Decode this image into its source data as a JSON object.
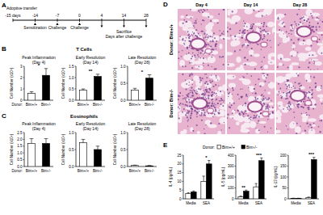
{
  "figure": {
    "panels": [
      "A",
      "B",
      "C",
      "D",
      "E"
    ],
    "row_titles": [
      "T Cells",
      "Eosinophils"
    ],
    "timeline": {
      "ticks": [
        {
          "value": -15,
          "label": "-15 days"
        },
        -14,
        -7,
        0,
        4,
        14,
        28
      ],
      "events": [
        {
          "day": -15,
          "text": "Adoptive transfer"
        },
        {
          "day": -14,
          "text": "Sensitization"
        },
        {
          "day": -7,
          "text": "Challenge"
        },
        {
          "day": 0,
          "text": "Challenge"
        }
      ],
      "sacrifice": {
        "days": [
          4,
          14,
          28
        ],
        "text": "Sacrifice",
        "subtext": "Days after challenge"
      }
    },
    "histology": {
      "columns": [
        "Day 4",
        "Day 14",
        "Day 28"
      ],
      "rows": [
        "Donor: Bim+/+",
        "Donor: Bim-/-"
      ]
    }
  },
  "chart_data": [
    {
      "type": "bar",
      "title": "Peak Inflammation (Day 4)",
      "x_label": "Donor:",
      "y_label": "Cell Number (x10⁵)",
      "categories": [
        "Bim+/+",
        "Bim-/-"
      ],
      "values": [
        0.6,
        2.2
      ],
      "errors": [
        0.15,
        0.6
      ],
      "colors": [
        "#ffffff",
        "#000000"
      ],
      "ylim": [
        0,
        3
      ],
      "yticks": [
        0,
        1,
        2,
        3
      ],
      "annotations": [
        {
          "text": "*"
        }
      ]
    },
    {
      "type": "bar",
      "title": "Early Resolution (Day 14)",
      "y_label": "Cell Number (x10⁵)",
      "categories": [
        "Bim+/+",
        "Bim-/-"
      ],
      "values": [
        0.45,
        1.05
      ],
      "errors": [
        0.05,
        0.1
      ],
      "colors": [
        "#ffffff",
        "#000000"
      ],
      "ylim": [
        0,
        1.5
      ],
      "yticks": [
        {
          "value": 0,
          "label": "0.0"
        },
        0.5,
        {
          "value": 1,
          "label": "1.0"
        },
        1.5
      ],
      "annotations": [
        {
          "text": "**"
        }
      ]
    },
    {
      "type": "bar",
      "title": "Late Resolution (Day 28)",
      "y_label": "Cell Number (x10⁵)",
      "categories": [
        "Bim+/+",
        "Bim-/-"
      ],
      "values": [
        0.3,
        0.65
      ],
      "errors": [
        0.05,
        0.1
      ],
      "colors": [
        "#ffffff",
        "#000000"
      ],
      "ylim": [
        0,
        1
      ],
      "yticks": [
        {
          "value": 0,
          "label": "0.0"
        },
        0.5,
        {
          "value": 1,
          "label": "1.0"
        }
      ],
      "annotations": [
        {
          "text": "*"
        }
      ]
    },
    {
      "type": "bar",
      "title": "Peak Inflammation (Day 4)",
      "x_label": "Donor:",
      "y_label": "Cell Number (x10⁶)",
      "categories": [
        "Bim+/+",
        "Bim-/-"
      ],
      "values": [
        1.7,
        1.7
      ],
      "errors": [
        0.35,
        0.35
      ],
      "colors": [
        "#ffffff",
        "#000000"
      ],
      "ylim": [
        0,
        2.5
      ],
      "yticks": [
        {
          "value": 0,
          "label": "0.0"
        },
        0.5,
        {
          "value": 1,
          "label": "1.0"
        },
        1.5,
        {
          "value": 2,
          "label": "2.0"
        },
        2.5
      ]
    },
    {
      "type": "bar",
      "title": "Early Resolution (Day 14)",
      "y_label": "Cell Number (x10⁶)",
      "categories": [
        "Bim+/+",
        "Bim-/-"
      ],
      "values": [
        0.7,
        0.5
      ],
      "errors": [
        0.1,
        0.1
      ],
      "colors": [
        "#ffffff",
        "#000000"
      ],
      "ylim": [
        0,
        1
      ],
      "yticks": [
        {
          "value": 0,
          "label": "0.0"
        },
        0.5,
        {
          "value": 1,
          "label": "1.0"
        }
      ]
    },
    {
      "type": "bar",
      "title": "Late Resolution (Day 28)",
      "y_label": "Cell Number (x10⁶)",
      "categories": [
        "Bim+/+",
        "Bim-/-"
      ],
      "values": [
        0.03,
        0.02
      ],
      "errors": [
        0.01,
        0.01
      ],
      "colors": [
        "#ffffff",
        "#000000"
      ],
      "ylim": [
        0,
        1
      ],
      "yticks": [
        {
          "value": 0,
          "label": "0.0"
        },
        0.5,
        {
          "value": 1,
          "label": "1.0"
        }
      ]
    },
    {
      "type": "bar",
      "y_label": "IL-4 (pg/mL)",
      "legend": "top",
      "legend_title": "Donor:",
      "categories": [
        "Media",
        "SEA"
      ],
      "series": [
        {
          "name": "Bim+/+",
          "color": "#ffffff",
          "values": [
            3,
            10
          ],
          "errors": [
            0.5,
            3
          ]
        },
        {
          "name": "Bim-/-",
          "color": "#000000",
          "values": [
            4,
            20
          ],
          "errors": [
            0.5,
            2
          ]
        }
      ],
      "ylim": [
        0,
        25
      ],
      "yticks": [
        0,
        5,
        10,
        15,
        20,
        25
      ],
      "annotations": [
        {
          "category": "SEA",
          "text": "*"
        }
      ]
    },
    {
      "type": "bar",
      "y_label": "IL-5 (pg/mL)",
      "categories": [
        "Media",
        "SEA"
      ],
      "series": [
        {
          "name": "Bim+/+",
          "color": "#ffffff",
          "values": [
            20,
            110
          ],
          "errors": [
            5,
            30
          ]
        },
        {
          "name": "Bim-/-",
          "color": "#000000",
          "values": [
            70,
            350
          ],
          "errors": [
            10,
            25
          ]
        }
      ],
      "ylim": [
        0,
        400
      ],
      "yticks": [
        0,
        100,
        200,
        300,
        400
      ],
      "annotations": [
        {
          "category": "Media",
          "text": "**"
        },
        {
          "category": "SEA",
          "text": "***"
        }
      ]
    },
    {
      "type": "bar",
      "y_label": "IL-13 (pg/mL)",
      "categories": [
        "Media",
        "SEA"
      ],
      "series": [
        {
          "name": "Bim+/+",
          "color": "#ffffff",
          "values": [
            2,
            5
          ],
          "errors": [
            1,
            3
          ]
        },
        {
          "name": "Bim-/-",
          "color": "#000000",
          "values": [
            2,
            180
          ],
          "errors": [
            1,
            10
          ]
        }
      ],
      "ylim": [
        0,
        200
      ],
      "yticks": [
        0,
        50,
        100,
        150,
        200
      ],
      "annotations": [
        {
          "category": "SEA",
          "text": "***"
        }
      ]
    }
  ]
}
